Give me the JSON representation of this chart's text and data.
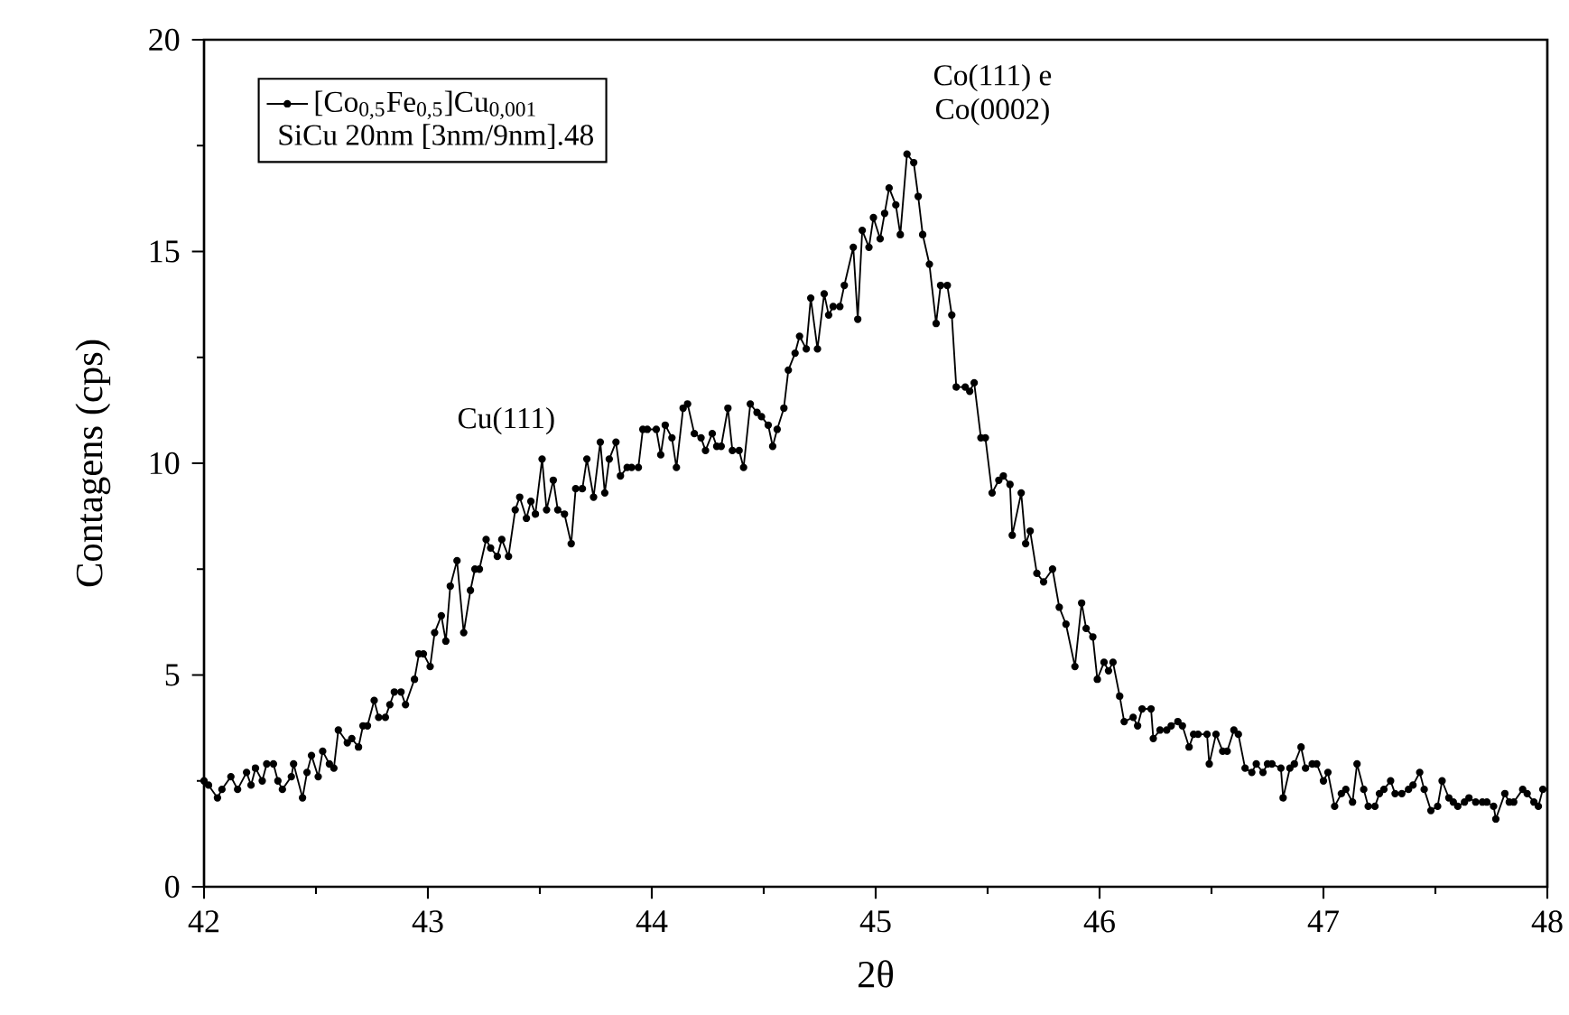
{
  "chart_data": {
    "type": "line",
    "xlabel": "2θ",
    "ylabel": "Contagens (cps)",
    "legend_title": "SiCu 20nm  [3nm/9nm].48",
    "annotations": [
      "Cu(111)",
      "Co(111) e",
      "Co(0002)"
    ],
    "xlim": [
      42,
      48
    ],
    "ylim": [
      0,
      20
    ],
    "xticks": [
      42,
      43,
      44,
      45,
      46,
      47,
      48
    ],
    "yticks": [
      0,
      5,
      10,
      15,
      20
    ],
    "legend": "top left",
    "marker": "circle",
    "line_style": "solid",
    "series": [
      {
        "name": "[Co$_{0,5}$Fe$_{0,5}$]Cu$_{0,001}$",
        "color": "#000000",
        "x": [
          42.0,
          42.02,
          42.06,
          42.08,
          42.12,
          42.15,
          42.19,
          42.21,
          42.23,
          42.26,
          42.28,
          42.31,
          42.33,
          42.35,
          42.39,
          42.4,
          42.44,
          42.46,
          42.48,
          42.51,
          42.53,
          42.56,
          42.58,
          42.6,
          42.64,
          42.66,
          42.69,
          42.71,
          42.73,
          42.76,
          42.78,
          42.81,
          42.83,
          42.85,
          42.88,
          42.9,
          42.94,
          42.96,
          42.98,
          43.01,
          43.03,
          43.06,
          43.08,
          43.1,
          43.13,
          43.16,
          43.19,
          43.21,
          43.23,
          43.26,
          43.28,
          43.31,
          43.33,
          43.36,
          43.39,
          43.41,
          43.44,
          43.46,
          43.48,
          43.51,
          43.53,
          43.56,
          43.58,
          43.61,
          43.64,
          43.66,
          43.69,
          43.71,
          43.74,
          43.77,
          43.79,
          43.81,
          43.84,
          43.86,
          43.89,
          43.91,
          43.94,
          43.96,
          43.98,
          44.02,
          44.04,
          44.06,
          44.09,
          44.11,
          44.14,
          44.16,
          44.19,
          44.22,
          44.24,
          44.27,
          44.29,
          44.31,
          44.34,
          44.36,
          44.39,
          44.41,
          44.44,
          44.47,
          44.49,
          44.52,
          44.54,
          44.56,
          44.59,
          44.61,
          44.64,
          44.66,
          44.69,
          44.71,
          44.74,
          44.77,
          44.79,
          44.81,
          44.84,
          44.86,
          44.9,
          44.92,
          44.94,
          44.97,
          44.99,
          45.02,
          45.04,
          45.06,
          45.09,
          45.11,
          45.14,
          45.17,
          45.19,
          45.21,
          45.24,
          45.27,
          45.29,
          45.32,
          45.34,
          45.36,
          45.4,
          45.42,
          45.44,
          45.47,
          45.49,
          45.52,
          45.55,
          45.57,
          45.6,
          45.61,
          45.65,
          45.67,
          45.69,
          45.72,
          45.75,
          45.79,
          45.82,
          45.85,
          45.89,
          45.92,
          45.94,
          45.97,
          45.99,
          46.02,
          46.04,
          46.06,
          46.09,
          46.11,
          46.15,
          46.17,
          46.19,
          46.23,
          46.24,
          46.27,
          46.3,
          46.32,
          46.35,
          46.37,
          46.4,
          46.42,
          46.44,
          46.48,
          46.49,
          46.52,
          46.55,
          46.57,
          46.6,
          46.62,
          46.65,
          46.68,
          46.7,
          46.73,
          46.75,
          46.77,
          46.81,
          46.82,
          46.85,
          46.87,
          46.9,
          46.92,
          46.95,
          46.97,
          47.0,
          47.02,
          47.05,
          47.08,
          47.1,
          47.13,
          47.15,
          47.18,
          47.2,
          47.23,
          47.25,
          47.27,
          47.3,
          47.32,
          47.35,
          47.38,
          47.4,
          47.43,
          47.45,
          47.48,
          47.51,
          47.53,
          47.56,
          47.58,
          47.6,
          47.63,
          47.65,
          47.68,
          47.71,
          47.73,
          47.76,
          47.77,
          47.81,
          47.83,
          47.85,
          47.89,
          47.91,
          47.94,
          47.96,
          47.98
        ],
        "values": [
          2.5,
          2.4,
          2.1,
          2.3,
          2.6,
          2.3,
          2.7,
          2.4,
          2.8,
          2.5,
          2.9,
          2.9,
          2.5,
          2.3,
          2.6,
          2.9,
          2.1,
          2.7,
          3.1,
          2.6,
          3.2,
          2.9,
          2.8,
          3.7,
          3.4,
          3.5,
          3.3,
          3.8,
          3.8,
          4.4,
          4.0,
          4.0,
          4.3,
          4.6,
          4.6,
          4.3,
          4.9,
          5.5,
          5.5,
          5.2,
          6.0,
          6.4,
          5.8,
          7.1,
          7.7,
          6.0,
          7.0,
          7.5,
          7.5,
          8.2,
          8.0,
          7.8,
          8.2,
          7.8,
          8.9,
          9.2,
          8.7,
          9.1,
          8.8,
          10.1,
          8.9,
          9.6,
          8.9,
          8.8,
          8.1,
          9.4,
          9.4,
          10.1,
          9.2,
          10.5,
          9.3,
          10.1,
          10.5,
          9.7,
          9.9,
          9.9,
          9.9,
          10.8,
          10.8,
          10.8,
          10.2,
          10.9,
          10.6,
          9.9,
          11.3,
          11.4,
          10.7,
          10.6,
          10.3,
          10.7,
          10.4,
          10.4,
          11.3,
          10.3,
          10.3,
          9.9,
          11.4,
          11.2,
          11.1,
          10.9,
          10.4,
          10.8,
          11.3,
          12.2,
          12.6,
          13.0,
          12.7,
          13.9,
          12.7,
          14.0,
          13.5,
          13.7,
          13.7,
          14.2,
          15.1,
          13.4,
          15.5,
          15.1,
          15.8,
          15.3,
          15.9,
          16.5,
          16.1,
          15.4,
          17.3,
          17.1,
          16.3,
          15.4,
          14.7,
          13.3,
          14.2,
          14.2,
          13.5,
          11.8,
          11.8,
          11.7,
          11.9,
          10.6,
          10.6,
          9.3,
          9.6,
          9.7,
          9.5,
          8.3,
          9.3,
          8.1,
          8.4,
          7.4,
          7.2,
          7.5,
          6.6,
          6.2,
          5.2,
          6.7,
          6.1,
          5.9,
          4.9,
          5.3,
          5.1,
          5.3,
          4.5,
          3.9,
          4.0,
          3.8,
          4.2,
          4.2,
          3.5,
          3.7,
          3.7,
          3.8,
          3.9,
          3.8,
          3.3,
          3.6,
          3.6,
          3.6,
          2.9,
          3.6,
          3.2,
          3.2,
          3.7,
          3.6,
          2.8,
          2.7,
          2.9,
          2.7,
          2.9,
          2.9,
          2.8,
          2.1,
          2.8,
          2.9,
          3.3,
          2.8,
          2.9,
          2.9,
          2.5,
          2.7,
          1.9,
          2.2,
          2.3,
          2.0,
          2.9,
          2.3,
          1.9,
          1.9,
          2.2,
          2.3,
          2.5,
          2.2,
          2.2,
          2.3,
          2.4,
          2.7,
          2.3,
          1.8,
          1.9,
          2.5,
          2.1,
          2.0,
          1.9,
          2.0,
          2.1,
          2.0,
          2.0,
          2.0,
          1.9,
          1.6,
          2.2,
          2.0,
          2.0,
          2.3,
          2.2,
          2.0,
          1.9,
          2.3
        ]
      }
    ]
  }
}
